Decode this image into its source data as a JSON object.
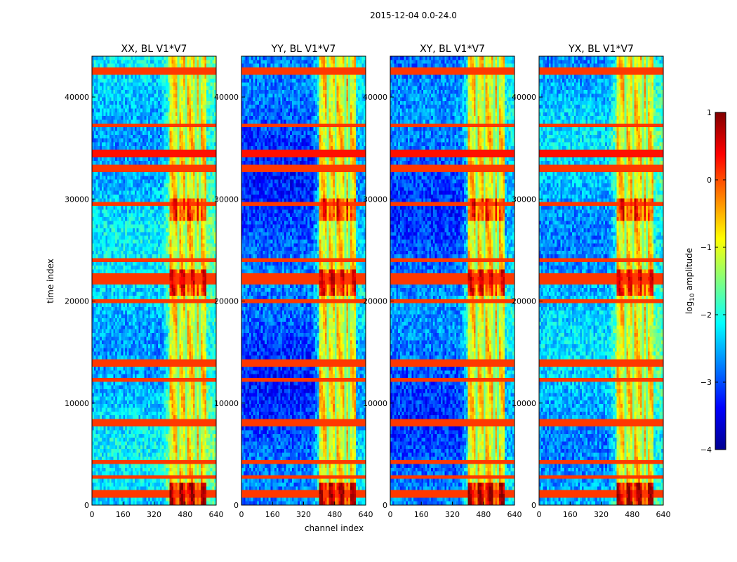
{
  "chart_data": {
    "type": "heatmap",
    "suptitle": "2015-12-04 0.0-24.0",
    "xlabel": "channel index",
    "ylabel": "time index",
    "xlim": [
      0,
      640
    ],
    "ylim": [
      0,
      44000
    ],
    "x_ticks": [
      0,
      160,
      320,
      480,
      640
    ],
    "y_ticks": [
      0,
      10000,
      20000,
      30000,
      40000
    ],
    "colormap": "jet",
    "colorbar": {
      "label_base": "log",
      "label_sub": "10",
      "label_rest": " amplitude",
      "range": [
        -4,
        1
      ],
      "ticks": [
        1,
        0,
        -1,
        -2,
        -3,
        -4
      ],
      "tick_labels": [
        "1",
        "0",
        "−1",
        "−2",
        "−3",
        "−4"
      ]
    },
    "features": {
      "bright_channel_band": [
        405,
        590
      ],
      "comb_gaps": [
        448,
        488,
        532,
        552
      ],
      "flagged_times": [
        800,
        1400,
        2700,
        4100,
        8100,
        12200,
        13900,
        20100,
        21800,
        22400,
        24000,
        29400,
        33000,
        34200,
        34600,
        37300,
        42500
      ]
    },
    "panels": [
      {
        "title": "XX, BL V1*V7",
        "level": -2.4
      },
      {
        "title": "YY, BL V1*V7",
        "level": -3.0
      },
      {
        "title": "XY, BL V1*V7",
        "level": -2.9
      },
      {
        "title": "YX, BL V1*V7",
        "level": -2.5
      }
    ]
  }
}
